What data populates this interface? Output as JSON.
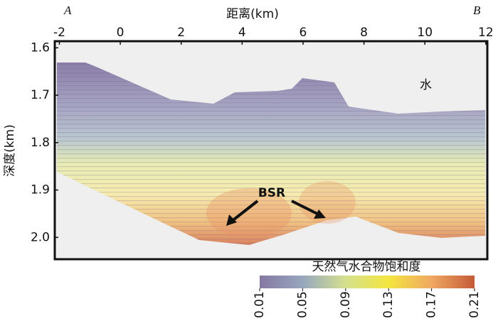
{
  "chart_data": {
    "type": "heatmap",
    "x_label": "距离(km)",
    "y_label": "深度(km)",
    "xlim": [
      -2.15,
      12.05
    ],
    "xticks": [
      -2,
      0,
      2,
      4,
      6,
      8,
      10,
      12
    ],
    "ylim": [
      1.586,
      2.046
    ],
    "yticks": [
      1.6,
      1.7,
      1.8,
      1.9,
      {
        "value": 2,
        "label": "2.0"
      }
    ],
    "annotations": {
      "left": "A",
      "right": "B",
      "water": "水",
      "bsr": "BSR"
    },
    "colorbar": {
      "title": "天然气水合物饱和度",
      "lim": [
        0.01,
        0.21
      ],
      "ticks": [
        0.01,
        0.05,
        0.09,
        0.13,
        0.17,
        0.21
      ],
      "colors": [
        "#8578a3",
        "#97a7bd",
        "#d4e08e",
        "#f4e640",
        "#f0a862",
        "#c45a38"
      ]
    }
  }
}
